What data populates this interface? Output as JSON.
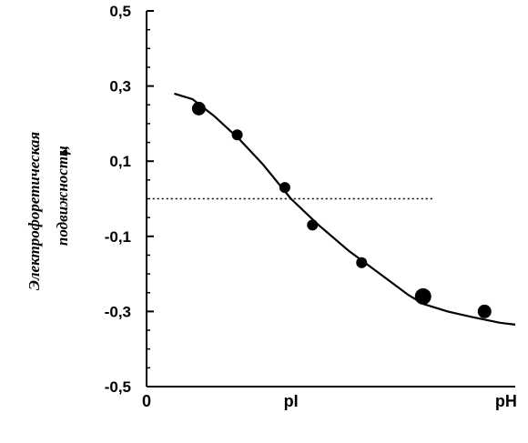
{
  "chart_data": {
    "type": "scatter",
    "ylim": [
      -0.5,
      0.5
    ],
    "xlim": [
      0,
      12
    ],
    "yticks": [
      0.5,
      0.3,
      0.1,
      -0.1,
      -0.3,
      -0.5
    ],
    "ytick_labels": [
      "0,5",
      "0,3",
      "0,1",
      "-0,1",
      "-0,3",
      "-0,5"
    ],
    "x_tick_labels": [
      {
        "x": 0,
        "label": "0"
      },
      {
        "x": 4.7,
        "label": "pI"
      },
      {
        "x": 11.7,
        "label": "pH"
      }
    ],
    "ylabel_line1": "Электрофоретическая",
    "ylabel_line2": "подвижность,",
    "ylabel_symbol": "μ",
    "reference_line": {
      "y": 0.0,
      "x_start": 0.2,
      "x_end": 9.3,
      "style": "dotted"
    },
    "series": [
      {
        "points": [
          {
            "x": 1.7,
            "y": 0.24,
            "size": "medium"
          },
          {
            "x": 2.95,
            "y": 0.17,
            "size": "small"
          },
          {
            "x": 4.5,
            "y": 0.03,
            "size": "small"
          },
          {
            "x": 5.4,
            "y": -0.07,
            "size": "small"
          },
          {
            "x": 7.0,
            "y": -0.17,
            "size": "small"
          },
          {
            "x": 9.0,
            "y": -0.26,
            "size": "large"
          },
          {
            "x": 11.0,
            "y": -0.3,
            "size": "medium"
          }
        ]
      },
      {
        "type": "line",
        "points": [
          {
            "x": 0.9,
            "y": 0.28
          },
          {
            "x": 1.5,
            "y": 0.265
          },
          {
            "x": 2.2,
            "y": 0.22
          },
          {
            "x": 3.0,
            "y": 0.16
          },
          {
            "x": 3.8,
            "y": 0.09
          },
          {
            "x": 4.7,
            "y": 0.0
          },
          {
            "x": 5.6,
            "y": -0.07
          },
          {
            "x": 6.6,
            "y": -0.14
          },
          {
            "x": 7.6,
            "y": -0.2
          },
          {
            "x": 8.5,
            "y": -0.255
          },
          {
            "x": 9.0,
            "y": -0.28
          },
          {
            "x": 9.8,
            "y": -0.3
          },
          {
            "x": 10.6,
            "y": -0.315
          },
          {
            "x": 11.5,
            "y": -0.33
          },
          {
            "x": 12.0,
            "y": -0.335
          }
        ]
      }
    ]
  }
}
